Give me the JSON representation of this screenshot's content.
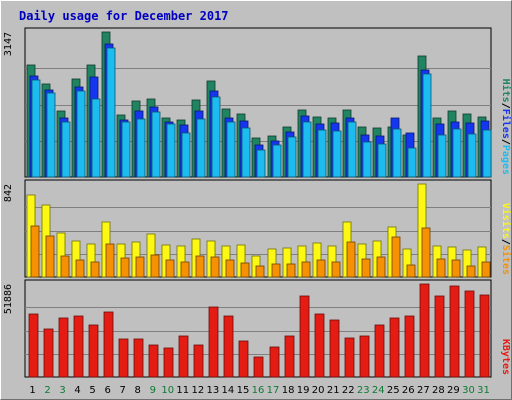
{
  "chart_data": {
    "type": "bar",
    "title": "Daily usage for December 2017",
    "categories": [
      "1",
      "2",
      "3",
      "4",
      "5",
      "6",
      "7",
      "8",
      "9",
      "10",
      "11",
      "12",
      "13",
      "14",
      "15",
      "16",
      "17",
      "18",
      "19",
      "20",
      "21",
      "22",
      "23",
      "24",
      "25",
      "26",
      "27",
      "28",
      "29",
      "30",
      "31"
    ],
    "weekend_days": [
      "2",
      "3",
      "9",
      "10",
      "16",
      "17",
      "23",
      "24",
      "30",
      "31"
    ],
    "panels": [
      {
        "id": "hits_files_pages",
        "max_label": "3147",
        "ymax": 3147,
        "legend": [
          "Pages",
          "Files",
          "Hits"
        ],
        "series": [
          {
            "name": "Hits",
            "color": "#218461",
            "values": [
              2430,
              2010,
              1430,
              2120,
              2440,
              3147,
              1340,
              1640,
              1690,
              1280,
              1240,
              1680,
              2090,
              1470,
              1360,
              840,
              880,
              1080,
              1450,
              1300,
              1290,
              1450,
              1080,
              1070,
              1080,
              910,
              2630,
              1270,
              1440,
              1370,
              1310
            ]
          },
          {
            "name": "Files",
            "color": "#1436f0",
            "values": [
              2200,
              1880,
              1290,
              1960,
              2160,
              2880,
              1240,
              1440,
              1520,
              1190,
              1120,
              1430,
              1860,
              1290,
              1210,
              700,
              780,
              970,
              1320,
              1160,
              1170,
              1270,
              920,
              890,
              1270,
              950,
              2320,
              1140,
              1190,
              1170,
              1220
            ]
          },
          {
            "name": "Pages",
            "color": "#1cbcf0",
            "values": [
              2100,
              1820,
              1200,
              1870,
              1690,
              2800,
              1200,
              1260,
              1420,
              1140,
              960,
              1260,
              1740,
              1200,
              1070,
              580,
              700,
              860,
              1200,
              1010,
              990,
              1200,
              750,
              720,
              1040,
              640,
              2240,
              920,
              1050,
              940,
              1020
            ]
          }
        ]
      },
      {
        "id": "visits_sites",
        "max_label": "842",
        "ymax": 842,
        "legend": [
          "Sites",
          "Visits"
        ],
        "series": [
          {
            "name": "Visits",
            "color": "#fcf813",
            "values": [
              740,
              650,
              400,
              330,
              300,
              500,
              300,
              320,
              390,
              290,
              280,
              340,
              330,
              280,
              290,
              190,
              250,
              260,
              280,
              310,
              280,
              500,
              300,
              330,
              450,
              250,
              842,
              280,
              270,
              240,
              270
            ]
          },
          {
            "name": "Sites",
            "color": "#f59103",
            "values": [
              460,
              370,
              190,
              150,
              140,
              300,
              170,
              180,
              200,
              150,
              140,
              190,
              180,
              150,
              130,
              100,
              120,
              120,
              140,
              150,
              140,
              320,
              160,
              180,
              360,
              110,
              440,
              160,
              150,
              100,
              140
            ]
          }
        ]
      },
      {
        "id": "kbytes",
        "max_label": "51886",
        "ymax": 51886,
        "legend": [
          "KBytes"
        ],
        "series": [
          {
            "name": "KBytes",
            "color": "#e41c13",
            "values": [
              35000,
              27000,
              33000,
              34000,
              29000,
              36000,
              21000,
              21000,
              18000,
              16000,
              23000,
              18000,
              39000,
              34000,
              20000,
              11000,
              17000,
              23000,
              45000,
              35000,
              32000,
              22000,
              23000,
              29000,
              33000,
              34000,
              51886,
              45000,
              51000,
              48000,
              46000
            ]
          }
        ]
      }
    ]
  }
}
